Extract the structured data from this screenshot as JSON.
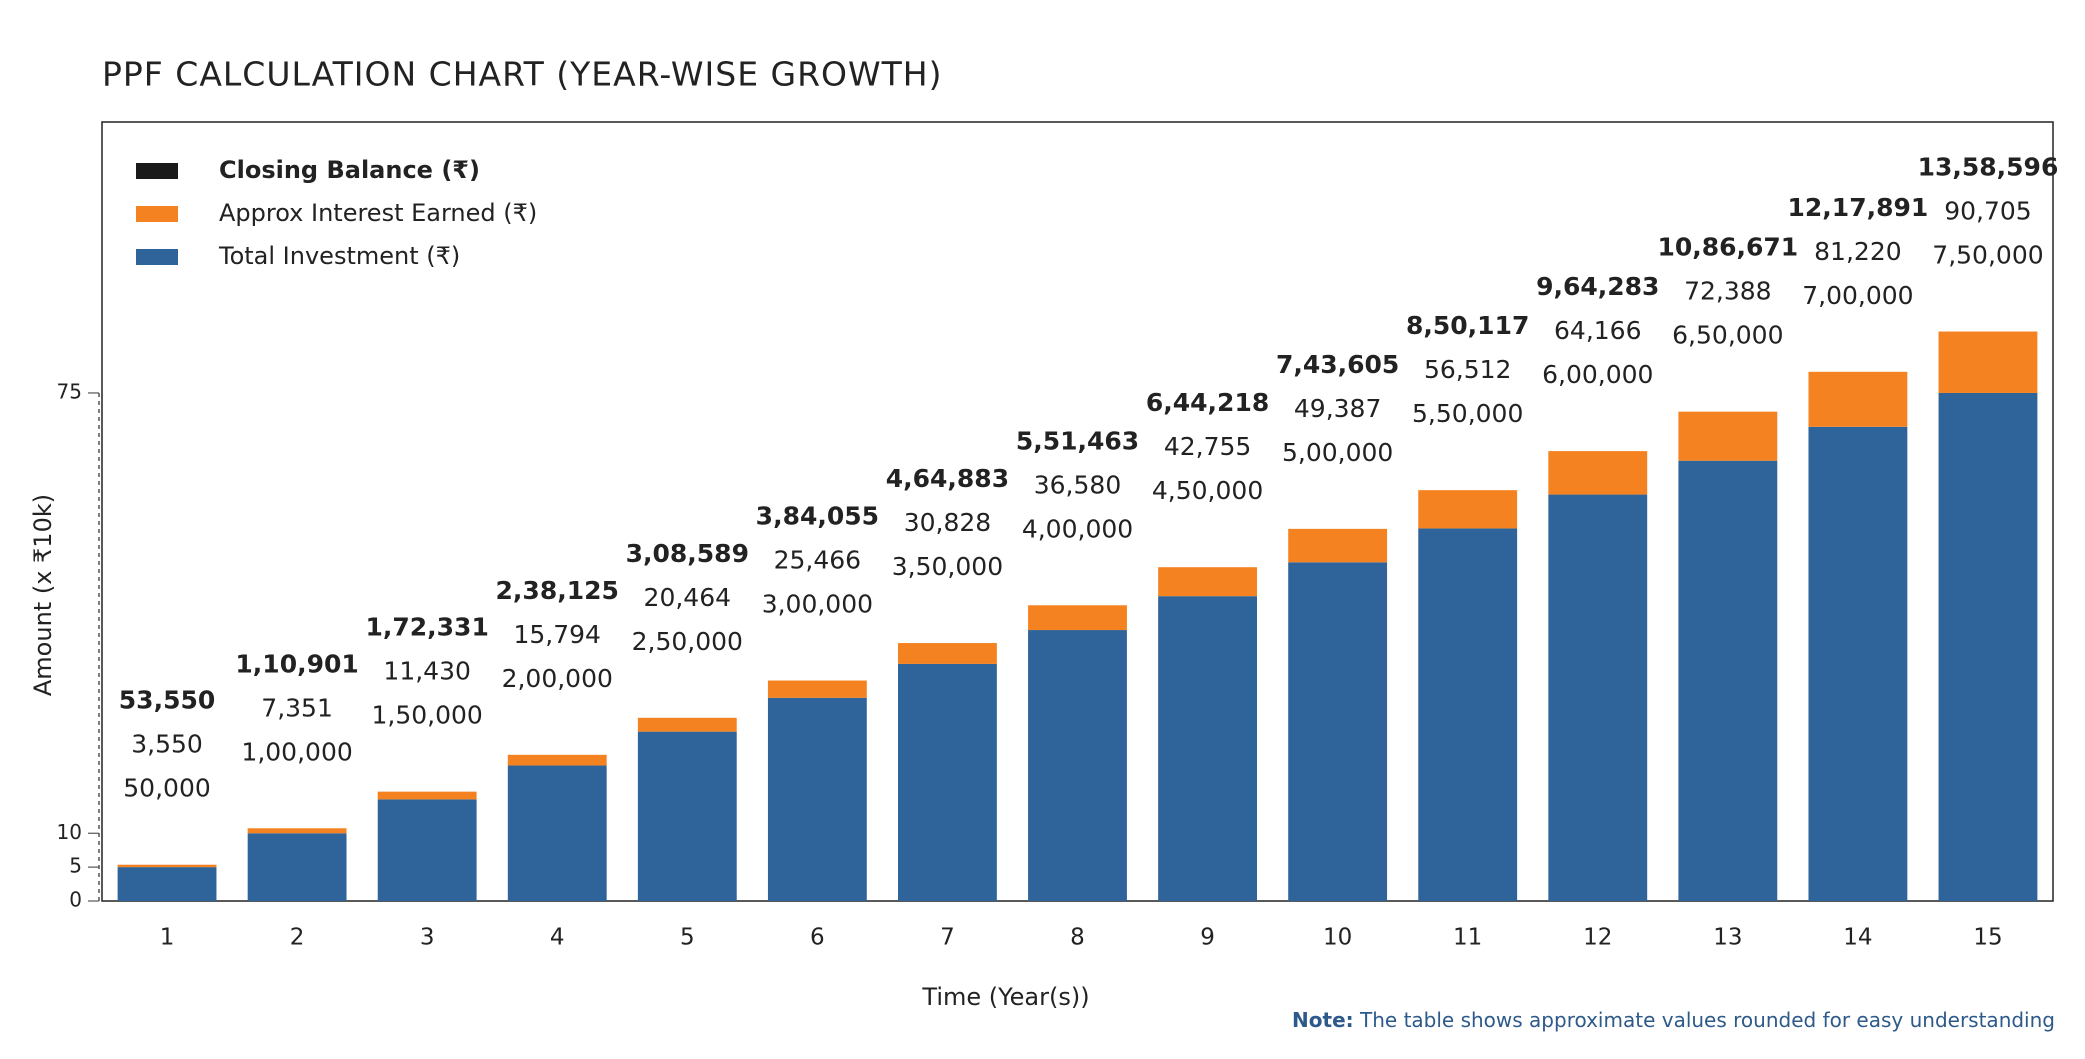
{
  "chart_data": {
    "type": "stacked_bar",
    "title": "PPF CALCULATION CHART (YEAR-WISE GROWTH)",
    "x_label": "Time (Year(s))",
    "y_label": "Amount  (x ₹10k)",
    "note_label": "Note:",
    "note": "The table shows approximate values rounded for easy understanding",
    "categories": [
      "1",
      "2",
      "3",
      "4",
      "5",
      "6",
      "7",
      "8",
      "9",
      "10",
      "11",
      "12",
      "13",
      "14",
      "15"
    ],
    "ylim": [
      0,
      115
    ],
    "yticks": [
      0,
      5,
      10,
      75
    ],
    "grid": false,
    "legend": "top-left",
    "totals": {
      "name": "Closing Balance (₹)",
      "color": "#1a1a1a",
      "values": [
        5.355,
        11.0901,
        17.2331,
        23.8125,
        30.8589,
        38.4055,
        46.4883,
        55.1463,
        64.4218,
        74.3605,
        85.0117,
        96.4283,
        108.6671,
        121.7891,
        135.8596
      ],
      "value_labels": [
        "53,550",
        "1,10,901",
        "1,72,331",
        "2,38,125",
        "3,08,589",
        "3,84,055",
        "4,64,883",
        "5,51,463",
        "6,44,218",
        "7,43,605",
        "8,50,117",
        "9,64,283",
        "10,86,671",
        "12,17,891",
        "13,58,596"
      ]
    },
    "series": [
      {
        "name": "Total Investment (₹)",
        "color": "#2e6499",
        "values": [
          5,
          10,
          15,
          20,
          25,
          30,
          35,
          40,
          45,
          50,
          55,
          60,
          65,
          70,
          75
        ],
        "value_labels": [
          "50,000",
          "1,00,000",
          "1,50,000",
          "2,00,000",
          "2,50,000",
          "3,00,000",
          "3,50,000",
          "4,00,000",
          "4,50,000",
          "5,00,000",
          "5,50,000",
          "6,00,000",
          "6,50,000",
          "7,00,000",
          "7,50,000"
        ]
      },
      {
        "name": "Approx Interest Earned (₹)",
        "color": "#f58220",
        "values": [
          0.355,
          0.7351,
          1.143,
          1.5794,
          2.0464,
          2.5466,
          3.0828,
          3.658,
          4.2755,
          4.9387,
          5.6512,
          6.4166,
          7.2388,
          8.122,
          9.0705
        ],
        "value_labels": [
          "3,550",
          "7,351",
          "11,430",
          "15,794",
          "20,464",
          "25,466",
          "30,828",
          "36,580",
          "42,755",
          "49,387",
          "56,512",
          "64,166",
          "72,388",
          "81,220",
          "90,705"
        ]
      }
    ]
  }
}
